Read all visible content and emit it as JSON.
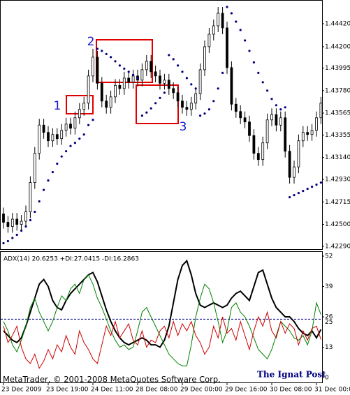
{
  "chart_data": [
    {
      "type": "candlestick",
      "categories": [
        "23 Dec 2009",
        null,
        null,
        null,
        null,
        null,
        null,
        null,
        null,
        null,
        "23 Dec 19:00",
        null,
        null,
        null,
        null,
        null,
        null,
        null,
        null,
        null,
        "24 Dec 11:00",
        null,
        null,
        null,
        null,
        null,
        null,
        null,
        null,
        null,
        "28 Dec 08:00",
        null,
        null,
        null,
        null,
        null,
        null,
        null,
        null,
        null,
        "29 Dec 00:00",
        null,
        null,
        null,
        null,
        null,
        null,
        null,
        null,
        null,
        "29 Dec 16:00",
        null,
        null,
        null,
        null,
        null,
        null,
        null,
        null,
        null,
        "30 Dec 08:00",
        null,
        null,
        null,
        null,
        null,
        null,
        null,
        null,
        null,
        "31 Dec 00:00",
        null
      ],
      "open": [
        1.426,
        1.4252,
        1.4248,
        1.4255,
        1.425,
        1.4253,
        1.4262,
        1.429,
        1.4318,
        1.4345,
        1.4338,
        1.433,
        1.4336,
        1.4332,
        1.434,
        1.4346,
        1.4342,
        1.4352,
        1.436,
        1.4366,
        1.4392,
        1.441,
        1.4385,
        1.4368,
        1.4362,
        1.4372,
        1.4383,
        1.438,
        1.439,
        1.4386,
        1.4392,
        1.4388,
        1.4398,
        1.4406,
        1.4396,
        1.4392,
        1.4385,
        1.4388,
        1.438,
        1.4376,
        1.4368,
        1.4362,
        1.436,
        1.4366,
        1.4375,
        1.4398,
        1.442,
        1.4432,
        1.444,
        1.4452,
        1.4438,
        1.44,
        1.4365,
        1.4358,
        1.4352,
        1.4348,
        1.4335,
        1.4318,
        1.4312,
        1.4328,
        1.435,
        1.4355,
        1.4345,
        1.4352,
        1.432,
        1.4295,
        1.4305,
        1.433,
        1.4338,
        1.4336,
        1.434,
        1.4352
      ],
      "high": [
        1.4266,
        1.4258,
        1.4261,
        1.4261,
        1.4259,
        1.4268,
        1.4296,
        1.4324,
        1.4351,
        1.4351,
        1.4344,
        1.4342,
        1.4342,
        1.4346,
        1.4352,
        1.4352,
        1.4358,
        1.4366,
        1.4372,
        1.4398,
        1.4418,
        1.4416,
        1.4391,
        1.4374,
        1.4378,
        1.4389,
        1.4389,
        1.4396,
        1.4396,
        1.4398,
        1.4398,
        1.4404,
        1.4412,
        1.4412,
        1.4402,
        1.4398,
        1.4394,
        1.4394,
        1.4386,
        1.4382,
        1.4374,
        1.4368,
        1.4372,
        1.4381,
        1.4404,
        1.4426,
        1.4438,
        1.4446,
        1.4458,
        1.4458,
        1.4444,
        1.4406,
        1.4371,
        1.4364,
        1.4358,
        1.4354,
        1.4341,
        1.4324,
        1.4334,
        1.4356,
        1.4361,
        1.4361,
        1.4358,
        1.4358,
        1.4326,
        1.4311,
        1.4336,
        1.4344,
        1.4344,
        1.4346,
        1.4358,
        1.4372
      ],
      "low": [
        1.4246,
        1.4242,
        1.4242,
        1.4244,
        1.4244,
        1.4247,
        1.4256,
        1.4284,
        1.4312,
        1.4332,
        1.4324,
        1.4324,
        1.4326,
        1.4326,
        1.4334,
        1.4336,
        1.4336,
        1.4346,
        1.4354,
        1.436,
        1.4386,
        1.4379,
        1.4362,
        1.4356,
        1.4356,
        1.4366,
        1.4374,
        1.4374,
        1.438,
        1.438,
        1.4382,
        1.4382,
        1.4392,
        1.439,
        1.4386,
        1.4379,
        1.4379,
        1.4374,
        1.437,
        1.4362,
        1.4356,
        1.4354,
        1.4354,
        1.436,
        1.4369,
        1.4392,
        1.4414,
        1.4426,
        1.4434,
        1.4432,
        1.4394,
        1.4359,
        1.4352,
        1.4346,
        1.4342,
        1.4329,
        1.4312,
        1.4306,
        1.4306,
        1.4322,
        1.4344,
        1.4339,
        1.4339,
        1.4314,
        1.4289,
        1.4289,
        1.4299,
        1.4324,
        1.433,
        1.433,
        1.4334,
        1.4346
      ],
      "close": [
        1.4252,
        1.4248,
        1.4255,
        1.425,
        1.4253,
        1.4262,
        1.429,
        1.4318,
        1.4345,
        1.4338,
        1.433,
        1.4336,
        1.4332,
        1.434,
        1.4346,
        1.4342,
        1.4352,
        1.436,
        1.4366,
        1.4392,
        1.441,
        1.4385,
        1.4368,
        1.4362,
        1.4372,
        1.4383,
        1.438,
        1.439,
        1.4386,
        1.4392,
        1.4388,
        1.4398,
        1.4406,
        1.4396,
        1.4392,
        1.4385,
        1.4388,
        1.438,
        1.4376,
        1.4368,
        1.4362,
        1.436,
        1.4366,
        1.4375,
        1.4398,
        1.442,
        1.4432,
        1.444,
        1.4452,
        1.4438,
        1.44,
        1.4365,
        1.4358,
        1.4352,
        1.4348,
        1.4335,
        1.4318,
        1.4312,
        1.4328,
        1.435,
        1.4355,
        1.4345,
        1.4352,
        1.432,
        1.4295,
        1.4305,
        1.433,
        1.4338,
        1.4336,
        1.434,
        1.4352,
        1.4366
      ],
      "up_color": "#ffffff",
      "down_color": "#000000",
      "outline_color": "#000000",
      "sar": {
        "color": "#000080",
        "values": [
          1.4232,
          1.4234,
          1.4237,
          1.424,
          1.4244,
          1.4248,
          1.4254,
          1.4262,
          1.4272,
          1.4283,
          1.4292,
          1.43,
          1.4308,
          1.4315,
          1.432,
          1.4325,
          1.4328,
          1.4332,
          1.4336,
          1.4345,
          1.435,
          1.4418,
          1.4416,
          1.4413,
          1.441,
          1.4406,
          1.4402,
          1.4399,
          1.4396,
          1.4393,
          1.439,
          1.4354,
          1.4357,
          1.4361,
          1.4366,
          1.4371,
          1.4376,
          1.4412,
          1.4408,
          1.4402,
          1.4396,
          1.439,
          1.4384,
          1.438,
          1.4354,
          1.4356,
          1.436,
          1.4368,
          1.438,
          1.4395,
          1.4458,
          1.4452,
          1.4444,
          1.4436,
          1.4426,
          1.4416,
          1.4405,
          1.4395,
          1.4386,
          1.4378,
          1.437,
          1.4364,
          1.436,
          1.4362,
          1.4276,
          1.4278,
          1.428,
          1.4282,
          1.4284,
          1.4286,
          1.4288,
          1.429
        ]
      },
      "ylim": [
        1.42263,
        1.44647
      ],
      "yticks": [
        {
          "value": 1.4442,
          "label": "1.44420"
        },
        {
          "value": 1.442,
          "label": "1.44200"
        },
        {
          "value": 1.43995,
          "label": "1.43995"
        },
        {
          "value": 1.4378,
          "label": "1.43780"
        },
        {
          "value": 1.43565,
          "label": "1.43565"
        },
        {
          "value": 1.43355,
          "label": "1.43355"
        },
        {
          "value": 1.4314,
          "label": "1.43140"
        },
        {
          "value": 1.4293,
          "label": "1.42930"
        },
        {
          "value": 1.42715,
          "label": "1.42715"
        },
        {
          "value": 1.425,
          "label": "1.42500"
        },
        {
          "value": 1.4229,
          "label": "1.42290"
        }
      ],
      "annotations": [
        {
          "text": "1"
        },
        {
          "text": "2"
        },
        {
          "text": "3"
        }
      ]
    },
    {
      "type": "line",
      "header": "ADX(14) 20.6253 +DI:27.0415 -DI:16.2863",
      "series": [
        {
          "color": "#000000",
          "values": [
            20,
            18,
            16,
            15,
            17,
            22,
            28,
            34,
            40,
            42,
            39,
            33,
            30,
            29,
            33,
            36,
            38,
            40,
            42,
            44,
            45,
            41,
            35,
            29,
            24,
            20,
            17,
            15,
            14,
            15,
            16,
            17,
            16,
            14,
            14,
            13,
            16,
            22,
            32,
            42,
            48,
            50,
            44,
            36,
            31,
            30,
            31,
            32,
            31,
            30,
            31,
            34,
            36,
            37,
            35,
            33,
            39,
            45,
            46,
            40,
            34,
            30,
            28,
            26,
            26,
            24,
            21,
            19,
            18,
            20,
            17,
            20.6
          ]
        },
        {
          "color": "#008000",
          "values": [
            24,
            20,
            14,
            11,
            16,
            22,
            30,
            34,
            28,
            24,
            20,
            24,
            30,
            35,
            33,
            38,
            40,
            36,
            42,
            44,
            40,
            34,
            30,
            25,
            20,
            16,
            13,
            14,
            12,
            13,
            20,
            28,
            30,
            26,
            22,
            18,
            14,
            10,
            8,
            6,
            5,
            5,
            14,
            26,
            34,
            40,
            38,
            32,
            24,
            15,
            20,
            30,
            32,
            28,
            26,
            22,
            17,
            12,
            10,
            8,
            12,
            18,
            24,
            22,
            20,
            17,
            16,
            18,
            14,
            20,
            32,
            27
          ]
        },
        {
          "color": "#cc0000",
          "values": [
            22,
            15,
            18,
            22,
            13,
            8,
            6,
            10,
            4,
            7,
            12,
            8,
            14,
            11,
            18,
            13,
            10,
            20,
            15,
            12,
            8,
            6,
            14,
            22,
            18,
            24,
            17,
            20,
            23,
            16,
            14,
            20,
            13,
            16,
            15,
            20,
            22,
            17,
            24,
            18,
            23,
            20,
            24,
            18,
            15,
            10,
            13,
            22,
            17,
            26,
            19,
            21,
            16,
            24,
            18,
            12,
            20,
            26,
            22,
            28,
            20,
            17,
            24,
            19,
            23,
            21,
            14,
            20,
            16,
            21,
            22,
            16.3
          ]
        }
      ],
      "ylim": [
        -2.1,
        54.1
      ],
      "yticks": [
        0,
        13,
        26,
        39,
        52
      ],
      "levels": [
        25
      ],
      "footer": "MetaTrader, © 2001-2008 MetaQuotes Software Corp.",
      "brand": "The Ignat Post"
    }
  ]
}
